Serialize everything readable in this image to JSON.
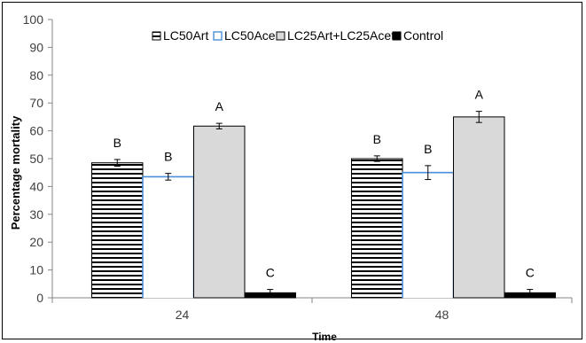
{
  "chart_data": {
    "type": "bar",
    "title": "",
    "xlabel": "Time",
    "ylabel": "Percentage mortality",
    "ylim": [
      0,
      100
    ],
    "yticks": [
      0,
      10,
      20,
      30,
      40,
      50,
      60,
      70,
      80,
      90,
      100
    ],
    "categories": [
      "24",
      "48"
    ],
    "legend_position": "top",
    "series": [
      {
        "name": "LC50Art",
        "values": [
          48.5,
          50
        ],
        "errors": [
          1.2,
          1.0
        ],
        "labels": [
          "B",
          "B"
        ],
        "pattern": "horizontal-stripes",
        "color": "#000000"
      },
      {
        "name": "LC50Ace",
        "values": [
          43.5,
          45
        ],
        "errors": [
          1.2,
          2.5
        ],
        "labels": [
          "B",
          "B"
        ],
        "pattern": "blue-outline",
        "color": "#4a90d9"
      },
      {
        "name": "LC25Art+LC25Acet",
        "values": [
          61.7,
          65
        ],
        "errors": [
          1.0,
          2.0
        ],
        "labels": [
          "A",
          "A"
        ],
        "pattern": "gray-fill",
        "color": "#d9d9d9"
      },
      {
        "name": "Control",
        "values": [
          1.8,
          1.8
        ],
        "errors": [
          1.2,
          1.2
        ],
        "labels": [
          "C",
          "C"
        ],
        "pattern": "solid",
        "color": "#000000"
      }
    ]
  }
}
